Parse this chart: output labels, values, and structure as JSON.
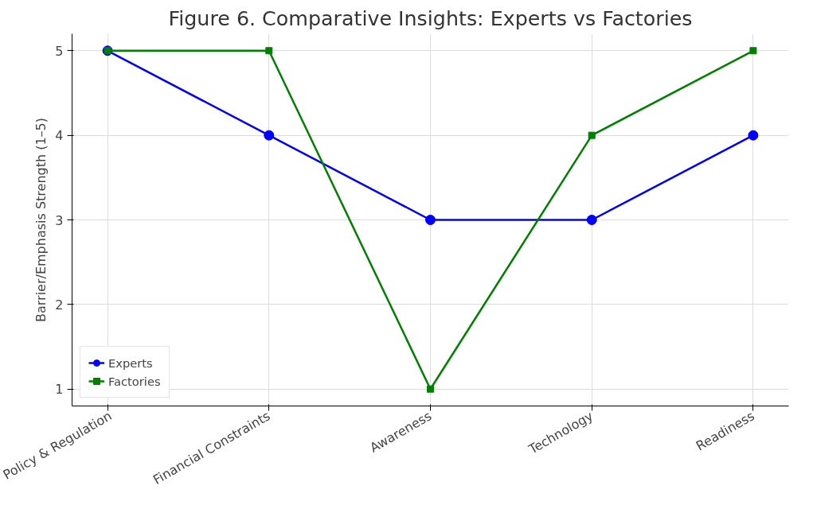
{
  "chart_data": {
    "type": "line",
    "title": "Figure 6. Comparative Insights: Experts vs Factories",
    "ylabel": "Barrier/Emphasis Strength (1–5)",
    "categories": [
      "Policy & Regulation",
      "Financial Constraints",
      "Awareness",
      "Technology",
      "Readiness"
    ],
    "series": [
      {
        "name": "Experts",
        "color": "#0000ff",
        "marker": "circle",
        "values": [
          5,
          4,
          3,
          3,
          4
        ]
      },
      {
        "name": "Factories",
        "color": "#008000",
        "marker": "square",
        "values": [
          5,
          5,
          1,
          4,
          5
        ]
      }
    ],
    "ylim": [
      0.8,
      5.2
    ],
    "yticks": [
      1,
      2,
      3,
      4,
      5
    ],
    "grid": true,
    "legend": "bottom left",
    "line_style": "solid"
  }
}
